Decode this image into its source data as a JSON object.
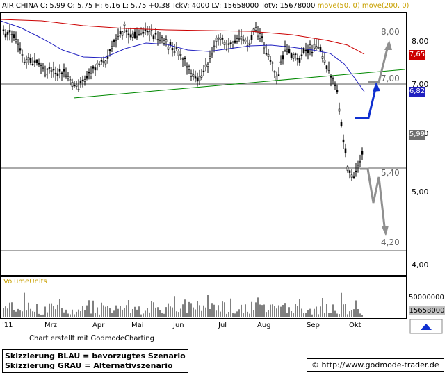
{
  "header": {
    "quote": "AIR CHINA C: 5,99 O: 5,75 H: 6,16 L: 5,75 +0,38 TckV: 4000 LV: 15658000 TotV: 15678000",
    "ma_label": "move(50, 0) move(200, 0)"
  },
  "price_tags": {
    "ma200": "7,65",
    "ma50": "6,82",
    "close": "5,99"
  },
  "targets": {
    "t800": "8,00",
    "t700": "7,00",
    "t540": "5,40",
    "t420": "4,20"
  },
  "volume": {
    "label": "VolumeUnits",
    "tick_5e7": "50000000",
    "last": "15658000"
  },
  "footer": {
    "credit": "Chart erstellt mit GodmodeCharting",
    "note_blue": "Skizzierung BLAU = bevorzugtes Szenario",
    "note_grey": "Skizzierung GRAU = Alternativszenario",
    "url": "© http://www.godmode-trader.de"
  },
  "colors": {
    "ma200": "#cc0000",
    "ma50": "#2020c0",
    "trend": "#008800",
    "blue_scenario": "#1030d0",
    "grey_scenario": "#909090",
    "candle": "#000000"
  },
  "chart_data": {
    "type": "candlestick",
    "title": "AIR CHINA",
    "x_tick_labels": [
      "'11",
      "Mrz",
      "Apr",
      "Mai",
      "Jun",
      "Jul",
      "Aug",
      "Sep",
      "Okt"
    ],
    "y_tick_labels": [
      "8,00",
      "7,00",
      "6,00",
      "5,00",
      "4,00"
    ],
    "ylim": [
      3.85,
      8.55
    ],
    "last": {
      "open": 5.75,
      "high": 6.16,
      "low": 5.75,
      "close": 5.99,
      "change": 0.38
    },
    "moving_averages": [
      {
        "name": "move(50, 0)",
        "last": 6.82
      },
      {
        "name": "move(200, 0)",
        "last": 7.65
      }
    ],
    "horizontal_levels": [
      8.0,
      7.0,
      5.4,
      4.2
    ],
    "scenarios": [
      {
        "name": "BLAU = bevorzugtes Szenario"
      },
      {
        "name": "GRAU = Alternativszenario"
      }
    ],
    "volume_ticks": [
      50000000
    ],
    "last_volume": 15658000
  }
}
